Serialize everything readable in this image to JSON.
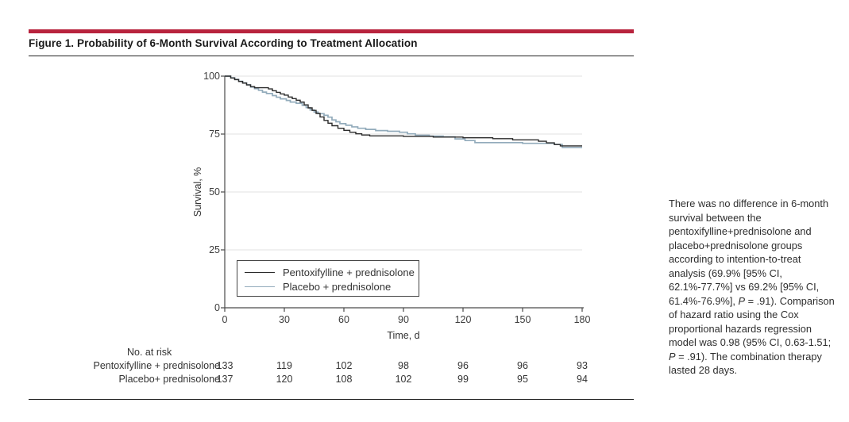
{
  "figure": {
    "title": "Figure 1. Probability of 6-Month Survival According to Treatment Allocation"
  },
  "chart_data": {
    "type": "line",
    "subtype": "kaplan-meier-step",
    "title": "",
    "xlabel": "Time, d",
    "ylabel": "Survival, %",
    "xlim": [
      0,
      180
    ],
    "ylim": [
      0,
      100
    ],
    "xticks": [
      0,
      30,
      60,
      90,
      120,
      150,
      180
    ],
    "yticks": [
      0,
      25,
      50,
      75,
      100
    ],
    "grid": "horizontal",
    "legend_position": "inside-bottom-left",
    "series": [
      {
        "name": "Pentoxifylline + prednisolone",
        "color": "#2b2b2b",
        "final_value_pct": 69.9,
        "points": [
          [
            0,
            100
          ],
          [
            3,
            99.2
          ],
          [
            5,
            98.5
          ],
          [
            7,
            97.7
          ],
          [
            9,
            97.0
          ],
          [
            11,
            96.2
          ],
          [
            13,
            95.5
          ],
          [
            15,
            95.0
          ],
          [
            22,
            94.5
          ],
          [
            24,
            93.7
          ],
          [
            26,
            93.0
          ],
          [
            28,
            92.3
          ],
          [
            30,
            91.8
          ],
          [
            32,
            91.0
          ],
          [
            34,
            90.3
          ],
          [
            36,
            89.6
          ],
          [
            38,
            88.8
          ],
          [
            40,
            87.6
          ],
          [
            42,
            86.3
          ],
          [
            44,
            85.2
          ],
          [
            46,
            83.9
          ],
          [
            48,
            82.4
          ],
          [
            50,
            80.9
          ],
          [
            52,
            79.7
          ],
          [
            54,
            78.6
          ],
          [
            57,
            77.5
          ],
          [
            60,
            76.6
          ],
          [
            63,
            75.8
          ],
          [
            66,
            75.1
          ],
          [
            69,
            74.6
          ],
          [
            73,
            74.2
          ],
          [
            90,
            74.0
          ],
          [
            105,
            73.7
          ],
          [
            120,
            73.4
          ],
          [
            135,
            73.0
          ],
          [
            145,
            72.5
          ],
          [
            158,
            71.9
          ],
          [
            162,
            71.2
          ],
          [
            166,
            70.5
          ],
          [
            169,
            69.9
          ],
          [
            180,
            69.9
          ]
        ]
      },
      {
        "name": "Placebo + prednisolone",
        "color": "#92abbb",
        "final_value_pct": 69.2,
        "points": [
          [
            0,
            100
          ],
          [
            3,
            99.3
          ],
          [
            5,
            98.6
          ],
          [
            7,
            97.8
          ],
          [
            9,
            97.1
          ],
          [
            11,
            96.3
          ],
          [
            13,
            95.3
          ],
          [
            15,
            94.6
          ],
          [
            17,
            93.9
          ],
          [
            19,
            93.1
          ],
          [
            21,
            92.5
          ],
          [
            24,
            91.6
          ],
          [
            26,
            90.9
          ],
          [
            28,
            90.2
          ],
          [
            31,
            89.5
          ],
          [
            33,
            88.8
          ],
          [
            36,
            88.3
          ],
          [
            39,
            87.4
          ],
          [
            41,
            86.4
          ],
          [
            43,
            85.4
          ],
          [
            45,
            84.5
          ],
          [
            47,
            83.8
          ],
          [
            50,
            83.1
          ],
          [
            52,
            82.3
          ],
          [
            54,
            81.1
          ],
          [
            56,
            80.3
          ],
          [
            58,
            79.5
          ],
          [
            61,
            78.8
          ],
          [
            64,
            78.1
          ],
          [
            67,
            77.5
          ],
          [
            71,
            77.0
          ],
          [
            76,
            76.5
          ],
          [
            82,
            76.2
          ],
          [
            88,
            75.8
          ],
          [
            92,
            75.1
          ],
          [
            96,
            74.5
          ],
          [
            103,
            74.1
          ],
          [
            110,
            73.8
          ],
          [
            116,
            72.9
          ],
          [
            121,
            72.2
          ],
          [
            126,
            71.3
          ],
          [
            150,
            71.0
          ],
          [
            166,
            70.5
          ],
          [
            170,
            69.2
          ],
          [
            180,
            69.2
          ]
        ]
      }
    ]
  },
  "risk_table": {
    "heading": "No. at risk",
    "rows": [
      {
        "label": "Pentoxifylline + prednisolone",
        "counts": [
          "133",
          "119",
          "102",
          "98",
          "96",
          "96",
          "93"
        ]
      },
      {
        "label": "Placebo+ prednisolone",
        "counts": [
          "137",
          "120",
          "108",
          "102",
          "99",
          "95",
          "94"
        ]
      }
    ]
  },
  "caption": {
    "lines": [
      "There was no difference in 6-month",
      "survival between the",
      "pentoxifylline+prednisolone and",
      "placebo+prednisolone groups",
      "according to intention-to-treat",
      "analysis (69.9% [95% CI,",
      "62.1%-77.7%] vs 69.2% [95% CI,",
      "61.4%-76.9%], P = .91). Comparison",
      "of hazard ratio using the Cox",
      "proportional hazards regression",
      "model was 0.98 (95% CI, 0.63-1.51;",
      "P = .91). The combination therapy",
      "lasted 28 days."
    ]
  },
  "colors": {
    "accent_bar": "#b8233d",
    "series_pentoxifylline": "#2b2b2b",
    "series_placebo": "#92abbb",
    "gridline": "#e2e2e2",
    "axis": "#4a4a4a",
    "rule": "#222222",
    "text": "#333333"
  }
}
